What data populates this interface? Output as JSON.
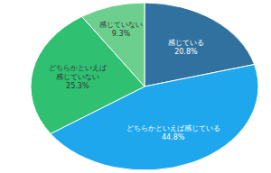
{
  "chart_data": {
    "type": "pie",
    "categories": [
      "感じている",
      "どちらかといえば感じている",
      "どちらかといえば感じていない",
      "感じていない"
    ],
    "values": [
      20.8,
      44.8,
      25.3,
      9.3
    ],
    "value_labels": [
      "20.8%",
      "44.8%",
      "25.3%",
      "9.3%"
    ],
    "colors": [
      "#31719f",
      "#1fa7ee",
      "#2fc071",
      "#6dcf8d"
    ],
    "data_labels": true
  }
}
